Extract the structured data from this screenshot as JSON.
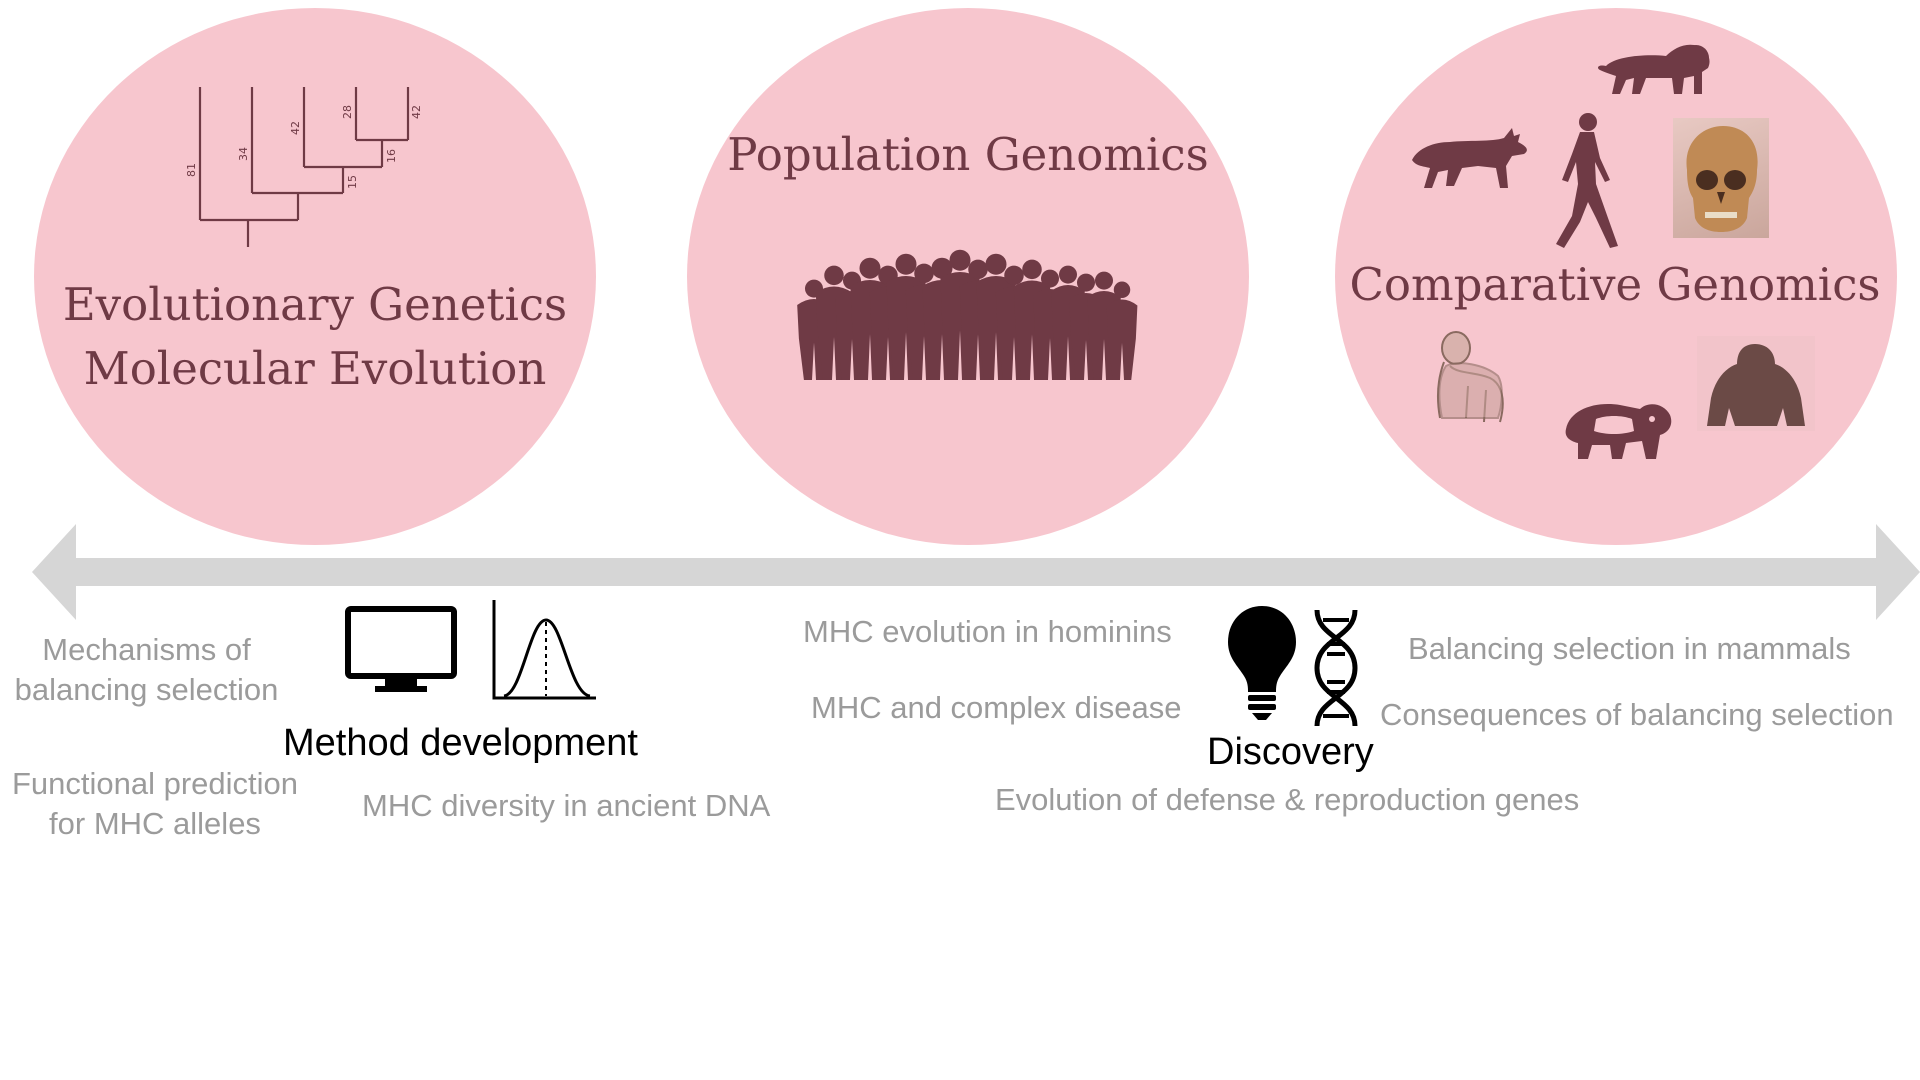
{
  "circles": {
    "left": {
      "title_line1": "Evolutionary Genetics",
      "title_line2": "Molecular Evolution",
      "tree_labels": [
        "81",
        "34",
        "42",
        "28",
        "42",
        "15",
        "16"
      ]
    },
    "middle": {
      "title": "Population Genomics"
    },
    "right": {
      "title": "Comparative Genomics"
    }
  },
  "method": {
    "label": "Method development",
    "topics": {
      "mechanisms": "Mechanisms of\nbalancing selection",
      "functional": "Functional prediction\nfor MHC alleles",
      "ancient": "MHC diversity in ancient DNA"
    }
  },
  "discovery": {
    "label": "Discovery",
    "topics": {
      "hominins": "MHC evolution in hominins",
      "disease": "MHC and complex disease",
      "defense": "Evolution of defense & reproduction genes",
      "mammals": "Balancing selection in mammals",
      "consequences": "Consequences of balancing selection"
    }
  },
  "colors": {
    "circle_fill": "#f7c6ce",
    "accent_dark": "#6f3a45",
    "arrow": "#d6d6d6",
    "topic_gray": "#9b9b9b"
  },
  "icons": [
    "phylogenetic-tree-icon",
    "crowd-silhouette-icon",
    "lion-icon",
    "wolf-icon",
    "walking-human-icon",
    "skull-icon",
    "chimpanzee-icon",
    "panda-icon",
    "gorilla-icon",
    "monitor-icon",
    "bell-curve-icon",
    "lightbulb-icon",
    "dna-icon"
  ]
}
